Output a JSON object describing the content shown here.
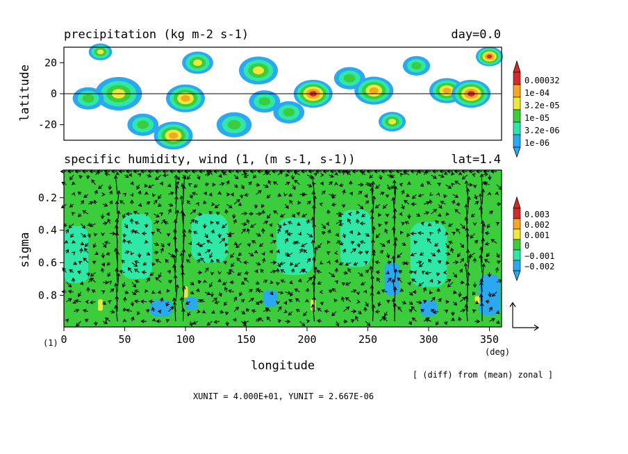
{
  "chart_data": [
    {
      "type": "heatmap",
      "title": "precipitation (kg m-2 s-1)",
      "time_label": "day=0.0",
      "ylabel": "latitude",
      "xlim": [
        0,
        360
      ],
      "ylim": [
        -30,
        30
      ],
      "y_ticks": [
        "20",
        "0",
        "-20"
      ],
      "y_tick_values": [
        20,
        0,
        -20
      ],
      "zero_line": true,
      "colorbar": {
        "labels": [
          "0.00032",
          "1e-04",
          "3.2e-05",
          "1e-05",
          "3.2e-06",
          "1e-06"
        ],
        "colors": [
          "#d42a2a",
          "#f5a623",
          "#f0e83a",
          "#3ccd3c",
          "#2fe8a8",
          "#2aa8f0"
        ]
      },
      "blobs": [
        {
          "lon": 45,
          "lat": 0,
          "r": 12,
          "level": 3
        },
        {
          "lon": 30,
          "lat": 27,
          "r": 6,
          "level": 3
        },
        {
          "lon": 20,
          "lat": -3,
          "r": 8,
          "level": 2
        },
        {
          "lon": 90,
          "lat": -27,
          "r": 10,
          "level": 4
        },
        {
          "lon": 100,
          "lat": -3,
          "r": 10,
          "level": 4
        },
        {
          "lon": 110,
          "lat": 20,
          "r": 8,
          "level": 3
        },
        {
          "lon": 160,
          "lat": 15,
          "r": 10,
          "level": 3
        },
        {
          "lon": 165,
          "lat": -5,
          "r": 8,
          "level": 2
        },
        {
          "lon": 205,
          "lat": 0,
          "r": 10,
          "level": 5
        },
        {
          "lon": 185,
          "lat": -12,
          "r": 8,
          "level": 2
        },
        {
          "lon": 235,
          "lat": 10,
          "r": 8,
          "level": 2
        },
        {
          "lon": 255,
          "lat": 2,
          "r": 10,
          "level": 4
        },
        {
          "lon": 270,
          "lat": -18,
          "r": 7,
          "level": 3
        },
        {
          "lon": 315,
          "lat": 2,
          "r": 9,
          "level": 4
        },
        {
          "lon": 335,
          "lat": 0,
          "r": 10,
          "level": 5
        },
        {
          "lon": 350,
          "lat": 24,
          "r": 7,
          "level": 5
        },
        {
          "lon": 65,
          "lat": -20,
          "r": 8,
          "level": 2
        },
        {
          "lon": 140,
          "lat": -20,
          "r": 9,
          "level": 2
        },
        {
          "lon": 290,
          "lat": 18,
          "r": 7,
          "level": 2
        }
      ]
    },
    {
      "type": "heatmap",
      "title": "specific humidity, wind (1, (m s-1, s-1))",
      "lat_label": "lat=1.4",
      "xlabel": "longitude",
      "ylabel": "sigma",
      "xlim": [
        0,
        360
      ],
      "ylim": [
        0.03,
        0.995
      ],
      "x_ticks": [
        "0",
        "50",
        "100",
        "150",
        "200",
        "250",
        "300",
        "350"
      ],
      "x_tick_values": [
        0,
        50,
        100,
        150,
        200,
        250,
        300,
        350
      ],
      "x_unit": "(deg)",
      "y_ticks": [
        "0.2",
        "0.4",
        "0.6",
        "0.8"
      ],
      "y_tick_values": [
        0.2,
        0.4,
        0.6,
        0.8
      ],
      "y_unit": "(1)",
      "colorbar": {
        "labels": [
          "0.003",
          "0.002",
          "0.001",
          "0",
          "−0.001",
          "−0.002"
        ],
        "colors": [
          "#d42a2a",
          "#f5a623",
          "#f0e83a",
          "#3ccd3c",
          "#2fe8a8",
          "#2aa8f0"
        ]
      },
      "background_color": "#3ccd3c",
      "patches": [
        {
          "lon": 10,
          "sig": 0.55,
          "w": 20,
          "h": 0.35,
          "level": 4
        },
        {
          "lon": 60,
          "sig": 0.5,
          "w": 25,
          "h": 0.4,
          "level": 4
        },
        {
          "lon": 120,
          "sig": 0.45,
          "w": 30,
          "h": 0.3,
          "level": 4
        },
        {
          "lon": 190,
          "sig": 0.5,
          "w": 30,
          "h": 0.35,
          "level": 4
        },
        {
          "lon": 240,
          "sig": 0.45,
          "w": 25,
          "h": 0.35,
          "level": 4
        },
        {
          "lon": 300,
          "sig": 0.55,
          "w": 30,
          "h": 0.4,
          "level": 4
        },
        {
          "lon": 80,
          "sig": 0.88,
          "w": 18,
          "h": 0.1,
          "level": 5
        },
        {
          "lon": 105,
          "sig": 0.85,
          "w": 10,
          "h": 0.08,
          "level": 5
        },
        {
          "lon": 170,
          "sig": 0.82,
          "w": 12,
          "h": 0.1,
          "level": 5
        },
        {
          "lon": 270,
          "sig": 0.7,
          "w": 12,
          "h": 0.2,
          "level": 5
        },
        {
          "lon": 300,
          "sig": 0.88,
          "w": 14,
          "h": 0.1,
          "level": 5
        },
        {
          "lon": 350,
          "sig": 0.8,
          "w": 18,
          "h": 0.25,
          "level": 5
        },
        {
          "lon": 30,
          "sig": 0.86,
          "w": 4,
          "h": 0.07,
          "level": 2
        },
        {
          "lon": 100,
          "sig": 0.78,
          "w": 4,
          "h": 0.07,
          "level": 2
        },
        {
          "lon": 205,
          "sig": 0.86,
          "w": 4,
          "h": 0.07,
          "level": 2
        },
        {
          "lon": 340,
          "sig": 0.83,
          "w": 4,
          "h": 0.05,
          "level": 2
        }
      ],
      "vector_field": {
        "reference_vector": true,
        "xunit_label": "XUNIT = 4.000E+01, YUNIT = 2.667E-06",
        "strong_updraft_lons": [
          42,
          92,
          100,
          205,
          253,
          270,
          330,
          342
        ]
      },
      "footnote": "[ (diff) from (mean) zonal ]"
    }
  ]
}
